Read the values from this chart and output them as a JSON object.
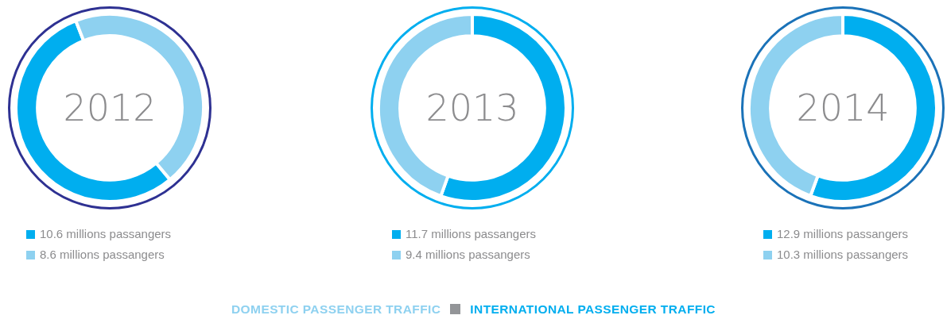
{
  "chart_data": [
    {
      "type": "donut",
      "title": "2012",
      "categories": [
        "10.6 millions passangers",
        "8.6 millions passangers"
      ],
      "values": [
        10.6,
        8.6
      ],
      "colors": [
        "#00aeef",
        "#8ed1f0"
      ],
      "legend": "bottom"
    },
    {
      "type": "donut",
      "title": "2013",
      "categories": [
        "11.7 millions passangers",
        "9.4 millions passangers"
      ],
      "values": [
        11.7,
        9.4
      ],
      "colors": [
        "#00aeef",
        "#8ed1f0"
      ],
      "legend": "bottom"
    },
    {
      "type": "donut",
      "title": "2014",
      "categories": [
        "12.9 millions passangers",
        "10.3 millions passangers"
      ],
      "values": [
        12.9,
        10.3
      ],
      "colors": [
        "#00aeef",
        "#8ed1f0"
      ],
      "legend": "bottom"
    },
    {
      "type": "other",
      "annotations": [
        "DOMESTIC PASSENGER TRAFFIC",
        "INTERNATIONAL PASSENGER TRAFFIC"
      ]
    }
  ]
}
